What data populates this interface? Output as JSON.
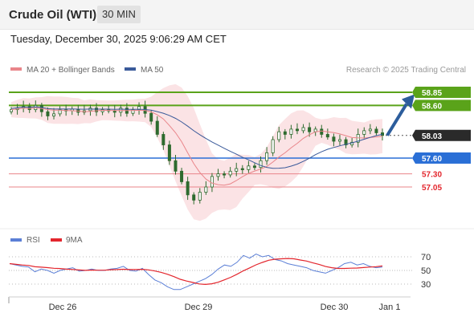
{
  "header": {
    "title": "Crude Oil (WTI)",
    "interval": "30 MIN"
  },
  "timestamp": "Tuesday, December 30, 2025 9:06:29 AM CET",
  "legend": {
    "ma20": "MA 20 + Bollinger Bands",
    "ma50": "MA 50"
  },
  "credit": "Research © 2025 Trading Central",
  "rsi_legend": {
    "rsi": "RSI",
    "ma9": "9MA"
  },
  "colors": {
    "candle": "#2e6b2e",
    "ma20": "#e9858a",
    "ma50": "#3a5a9a",
    "band": "#fbe0e2",
    "resistance": "#5aa31a",
    "support_blue": "#2a6fd6",
    "support_red": "#e9858a",
    "current": "#2a2a2a",
    "arrow": "#2c5d9c",
    "rsi": "#5b7fd6",
    "rsi_ma": "#e3262d"
  },
  "chart_data": [
    {
      "type": "candlestick",
      "title": "Crude Oil (WTI)",
      "interval": "30 MIN",
      "x_labels": [
        "Dec 26",
        "Dec 29",
        "Dec 30",
        "Jan 1"
      ],
      "ylim": [
        56.4,
        59.1
      ],
      "levels": [
        {
          "label": "58.85",
          "value": 58.85,
          "kind": "resistance"
        },
        {
          "label": "58.60",
          "value": 58.6,
          "kind": "resistance"
        },
        {
          "label": "58.03",
          "value": 58.03,
          "kind": "current"
        },
        {
          "label": "57.60",
          "value": 57.6,
          "kind": "support"
        },
        {
          "label": "57.30",
          "value": 57.3,
          "kind": "support"
        },
        {
          "label": "57.05",
          "value": 57.05,
          "kind": "support"
        }
      ],
      "series": [
        {
          "name": "MA 20 + Bollinger Bands"
        },
        {
          "name": "MA 50"
        }
      ],
      "close_path": [
        58.52,
        58.55,
        58.58,
        58.52,
        58.6,
        58.48,
        58.4,
        58.44,
        58.52,
        58.5,
        58.53,
        58.47,
        58.5,
        58.55,
        58.48,
        58.52,
        58.5,
        58.47,
        58.55,
        58.45,
        58.52,
        58.58,
        58.45,
        58.3,
        58.05,
        57.85,
        57.55,
        57.35,
        57.15,
        56.9,
        56.8,
        56.95,
        57.05,
        57.25,
        57.3,
        57.28,
        57.35,
        57.4,
        57.38,
        57.45,
        57.42,
        57.55,
        57.7,
        57.95,
        58.1,
        58.05,
        58.15,
        58.12,
        58.18,
        58.1,
        58.15,
        58.05,
        58.0,
        57.92,
        57.95,
        57.85,
        57.9,
        58.05,
        58.12,
        58.15,
        58.08,
        58.03
      ]
    },
    {
      "type": "line",
      "title": "RSI",
      "yticks": [
        70,
        50,
        30
      ],
      "series": [
        {
          "name": "RSI"
        },
        {
          "name": "9MA"
        }
      ],
      "rsi_values": [
        60,
        58,
        56,
        55,
        48,
        52,
        50,
        46,
        50,
        52,
        54,
        49,
        50,
        52,
        50,
        50,
        52,
        53,
        56,
        50,
        49,
        53,
        44,
        36,
        32,
        26,
        22,
        22,
        26,
        30,
        34,
        38,
        44,
        52,
        58,
        56,
        62,
        72,
        68,
        74,
        70,
        72,
        66,
        64,
        60,
        58,
        56,
        54,
        50,
        48,
        46,
        50,
        54,
        60,
        62,
        58,
        60,
        56,
        54,
        55
      ]
    }
  ]
}
